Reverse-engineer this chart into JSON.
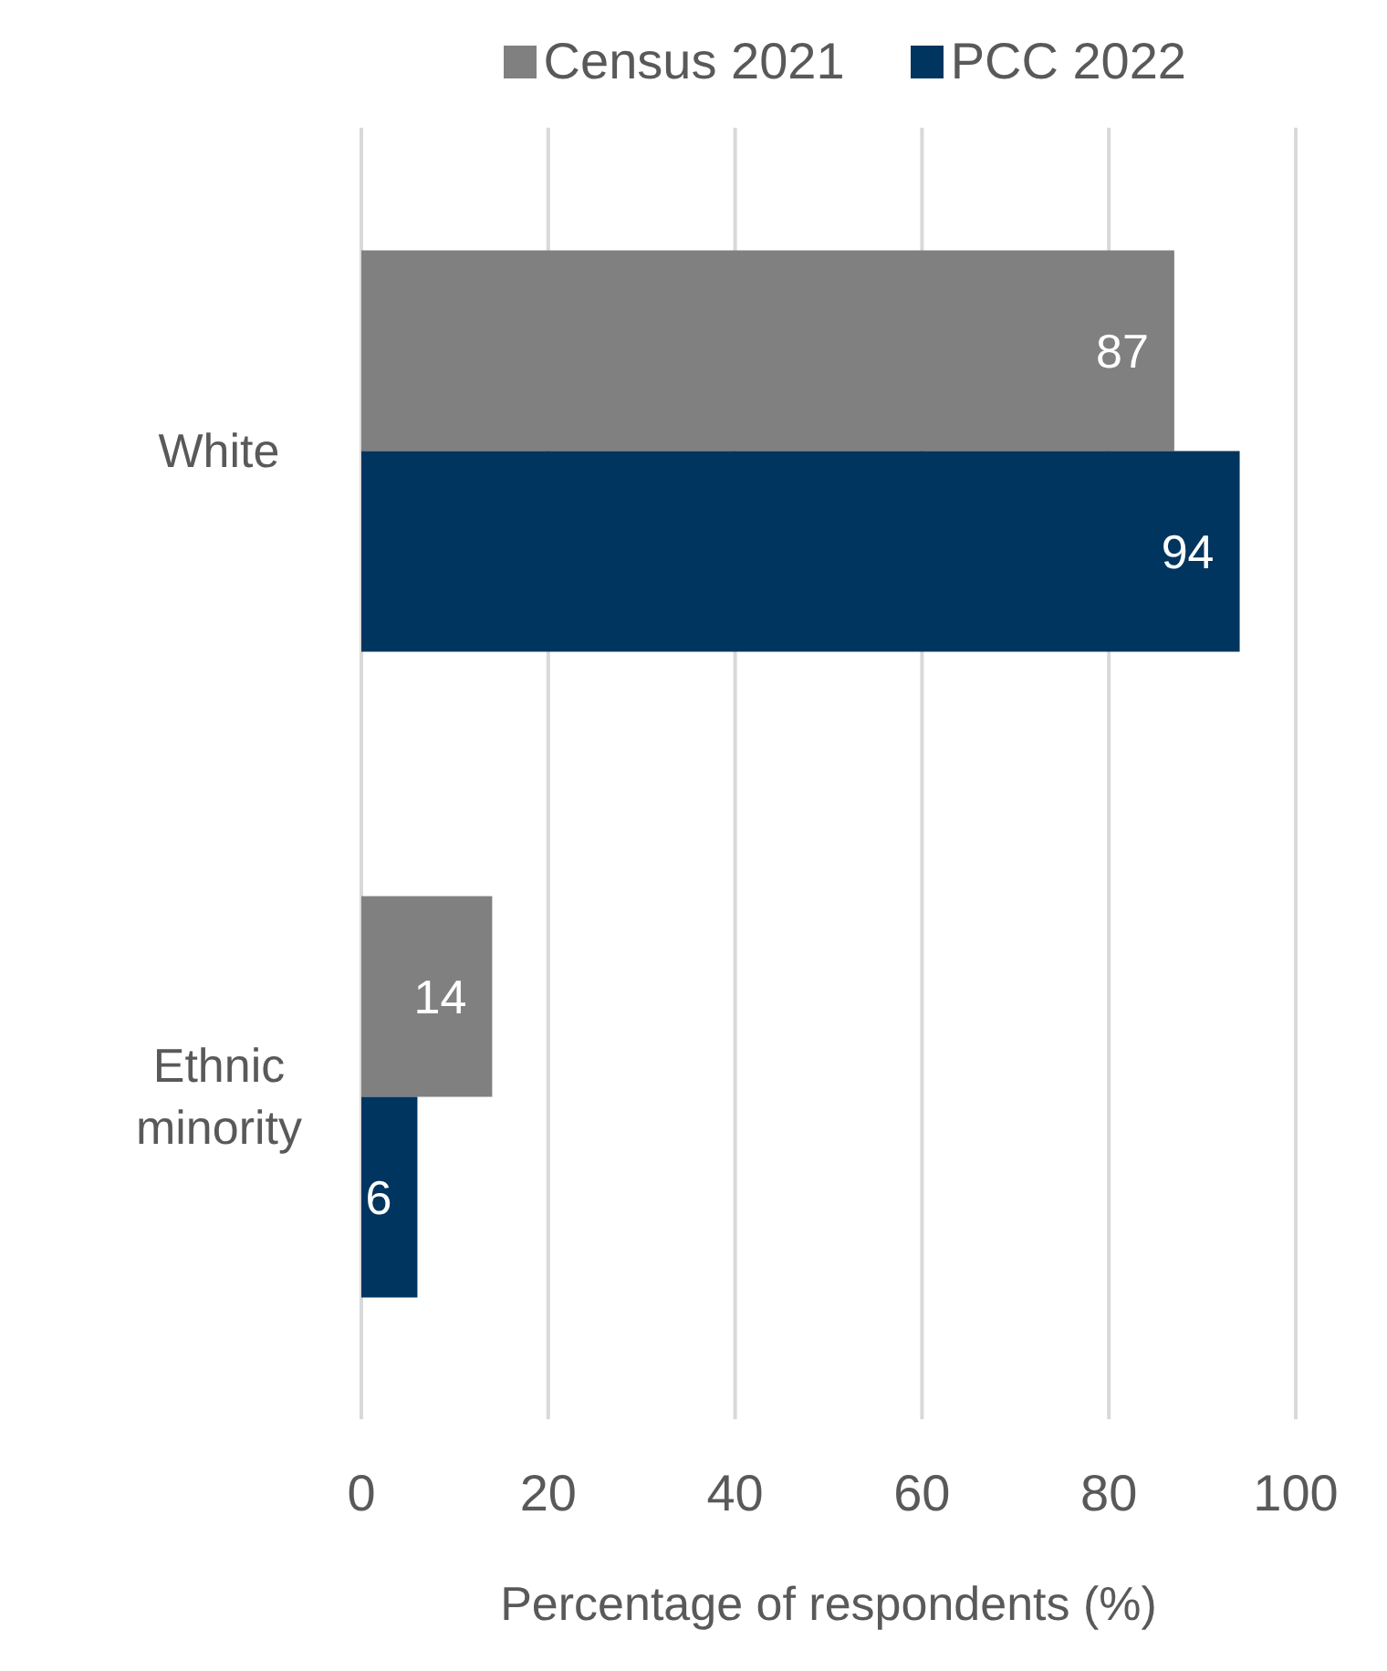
{
  "chart_data": {
    "type": "bar",
    "orientation": "horizontal",
    "categories": [
      "White",
      "Ethnic minority"
    ],
    "series": [
      {
        "name": "Census 2021",
        "color": "#808080",
        "values": [
          87,
          14
        ]
      },
      {
        "name": "PCC 2022",
        "color": "#00355f",
        "values": [
          94,
          6
        ]
      }
    ],
    "xlabel": "Percentage of respondents (%)",
    "xlim": [
      0,
      100
    ],
    "xticks": [
      0,
      20,
      40,
      60,
      80,
      100
    ],
    "grid": "x",
    "legend": "top",
    "data_labels": true
  }
}
